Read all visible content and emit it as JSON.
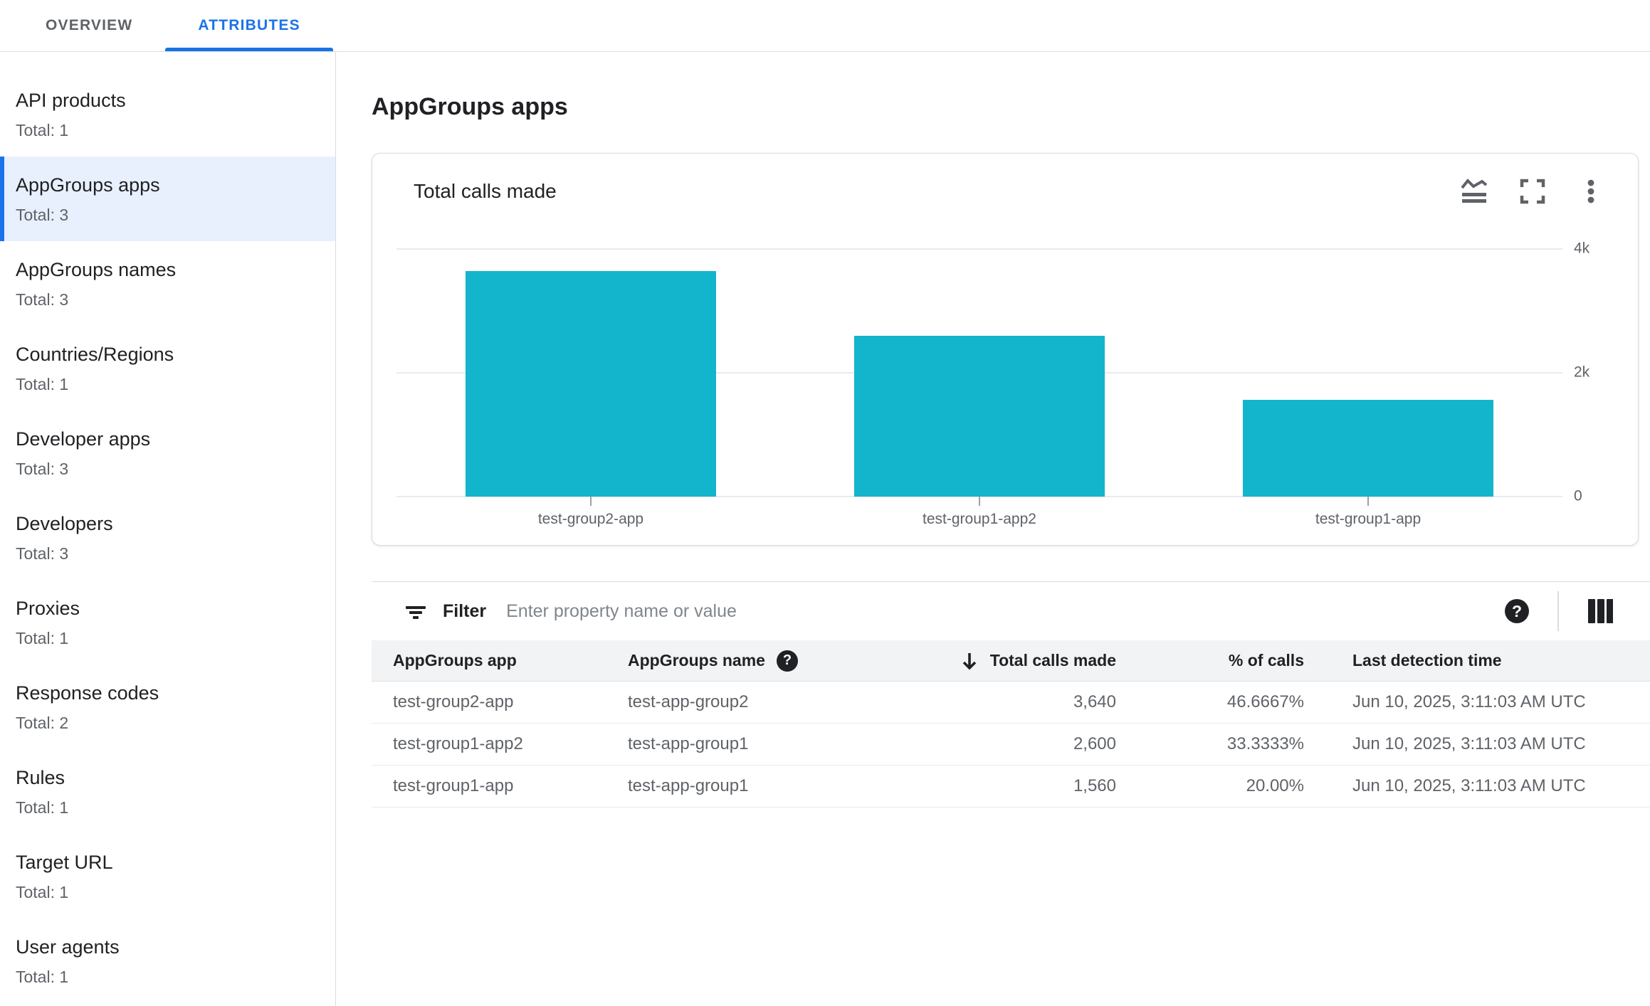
{
  "tabs": [
    {
      "label": "OVERVIEW",
      "active": false
    },
    {
      "label": "ATTRIBUTES",
      "active": true
    }
  ],
  "sidebar": {
    "items": [
      {
        "label": "API products",
        "total": "Total: 1",
        "selected": false
      },
      {
        "label": "AppGroups apps",
        "total": "Total: 3",
        "selected": true
      },
      {
        "label": "AppGroups names",
        "total": "Total: 3",
        "selected": false
      },
      {
        "label": "Countries/Regions",
        "total": "Total: 1",
        "selected": false
      },
      {
        "label": "Developer apps",
        "total": "Total: 3",
        "selected": false
      },
      {
        "label": "Developers",
        "total": "Total: 3",
        "selected": false
      },
      {
        "label": "Proxies",
        "total": "Total: 1",
        "selected": false
      },
      {
        "label": "Response codes",
        "total": "Total: 2",
        "selected": false
      },
      {
        "label": "Rules",
        "total": "Total: 1",
        "selected": false
      },
      {
        "label": "Target URL",
        "total": "Total: 1",
        "selected": false
      },
      {
        "label": "User agents",
        "total": "Total: 1",
        "selected": false
      }
    ]
  },
  "main": {
    "title": "AppGroups apps",
    "chart_card": {
      "title": "Total calls made",
      "icons": [
        "chart-type-icon",
        "fullscreen-icon",
        "more-vert-icon"
      ]
    },
    "filter": {
      "label": "Filter",
      "placeholder": "Enter property name or value",
      "help_glyph": "?"
    },
    "table": {
      "columns": [
        {
          "label": "AppGroups app",
          "align": "left"
        },
        {
          "label": "AppGroups name",
          "align": "left",
          "help": true
        },
        {
          "label": "Total calls made",
          "align": "right",
          "sorted": "desc"
        },
        {
          "label": "% of calls",
          "align": "right"
        },
        {
          "label": "Last detection time",
          "align": "left"
        }
      ],
      "rows": [
        [
          "test-group2-app",
          "test-app-group2",
          "3,640",
          "46.6667%",
          "Jun 10, 2025, 3:11:03 AM UTC"
        ],
        [
          "test-group1-app2",
          "test-app-group1",
          "2,600",
          "33.3333%",
          "Jun 10, 2025, 3:11:03 AM UTC"
        ],
        [
          "test-group1-app",
          "test-app-group1",
          "1,560",
          "20.00%",
          "Jun 10, 2025, 3:11:03 AM UTC"
        ]
      ]
    }
  },
  "chart_data": {
    "type": "bar",
    "title": "Total calls made",
    "categories": [
      "test-group2-app",
      "test-group1-app2",
      "test-group1-app"
    ],
    "values": [
      3640,
      2600,
      1560
    ],
    "xlabel": "",
    "ylabel": "",
    "ylim": [
      0,
      4000
    ],
    "yticks": [
      {
        "value": 0,
        "label": "0"
      },
      {
        "value": 2000,
        "label": "2k"
      },
      {
        "value": 4000,
        "label": "4k"
      }
    ],
    "grid": "horizontal",
    "legend": "none",
    "bar_color": "#12B5CB"
  },
  "colors": {
    "accent": "#1A73E8",
    "bar": "#12B5CB",
    "selected_bg": "#E8F0FE",
    "border": "#DADCE0",
    "text_primary": "#202124",
    "text_secondary": "#5F6368",
    "table_header_bg": "#F1F3F4",
    "placeholder": "#80868B",
    "gridline": "#E8EAED"
  }
}
